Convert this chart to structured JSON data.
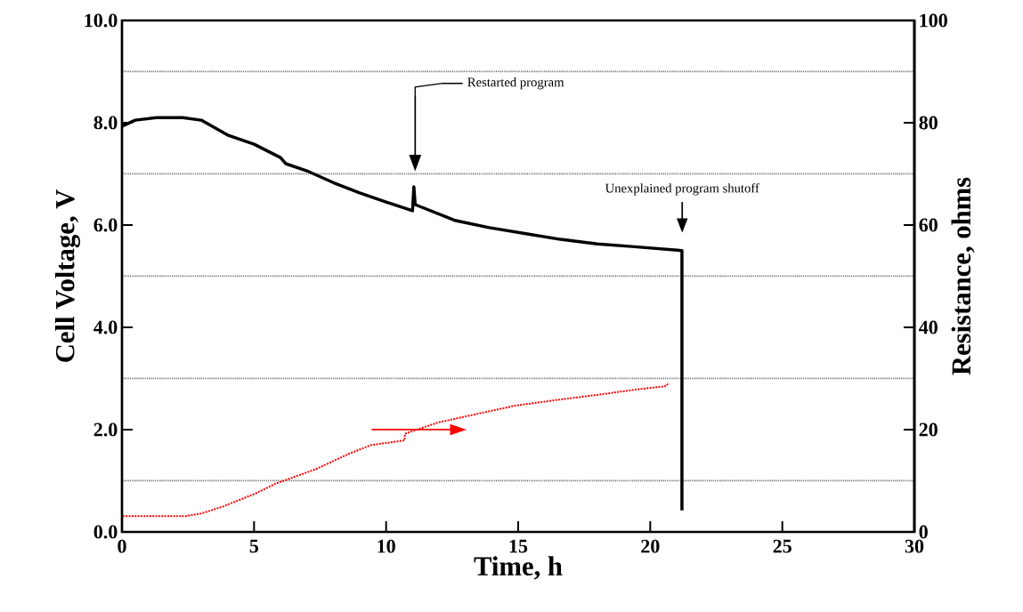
{
  "chart_data": {
    "type": "line",
    "xlabel": "Time, h",
    "ylabel": "Cell Voltage, V",
    "y2label": "Resistance, ohms",
    "xlim": [
      0,
      30
    ],
    "xticks": [
      0,
      5,
      10,
      15,
      20,
      25,
      30
    ],
    "ylim": [
      0,
      10
    ],
    "yticks": [
      {
        "value": 0,
        "label": "0.0"
      },
      {
        "value": 1,
        "label": null
      },
      {
        "value": 2,
        "label": "2.0"
      },
      {
        "value": 3,
        "label": null
      },
      {
        "value": 4,
        "label": "4.0"
      },
      {
        "value": 5,
        "label": null
      },
      {
        "value": 6,
        "label": "6.0"
      },
      {
        "value": 7,
        "label": null
      },
      {
        "value": 8,
        "label": "8.0"
      },
      {
        "value": 9,
        "label": null
      },
      {
        "value": 10,
        "label": "10.0"
      }
    ],
    "y2lim": [
      0,
      100
    ],
    "y2ticks": [
      0,
      20,
      40,
      60,
      80,
      100
    ],
    "grid": "y",
    "marker": "none",
    "series": [
      {
        "color": "#000000",
        "line_style": "solid",
        "x": [
          0,
          0.5,
          1.3,
          2.3,
          3.0,
          4.0,
          5.0,
          6.0,
          6.2,
          7.0,
          8.0,
          9.0,
          10.0,
          11.0,
          11.05,
          11.1,
          12.6,
          13.9,
          15.3,
          16.6,
          18.0,
          19.3,
          21.2,
          21.2
        ],
        "values": [
          7.93,
          8.05,
          8.1,
          8.1,
          8.05,
          7.76,
          7.58,
          7.32,
          7.2,
          7.06,
          6.83,
          6.63,
          6.45,
          6.28,
          6.75,
          6.4,
          6.09,
          5.95,
          5.83,
          5.72,
          5.63,
          5.58,
          5.5,
          0.42
        ]
      },
      {
        "axis": "y2",
        "color": "#ff0000",
        "line_style": "dotted",
        "x": [
          0.03,
          2.4,
          3.0,
          3.84,
          5.09,
          5.8,
          7.35,
          8.6,
          9.44,
          10.7,
          10.71,
          11.97,
          13.2,
          14.9,
          16.6,
          18.0,
          19.4,
          20.6,
          20.7
        ],
        "values": [
          3.1,
          3.1,
          3.6,
          5.0,
          7.6,
          9.4,
          12.3,
          15.3,
          17.0,
          17.9,
          19.2,
          21.4,
          22.8,
          24.7,
          25.9,
          26.8,
          27.8,
          28.5,
          29.2
        ]
      }
    ],
    "annotations": [
      "Restarted program",
      "Unexplained program shutoff"
    ]
  }
}
